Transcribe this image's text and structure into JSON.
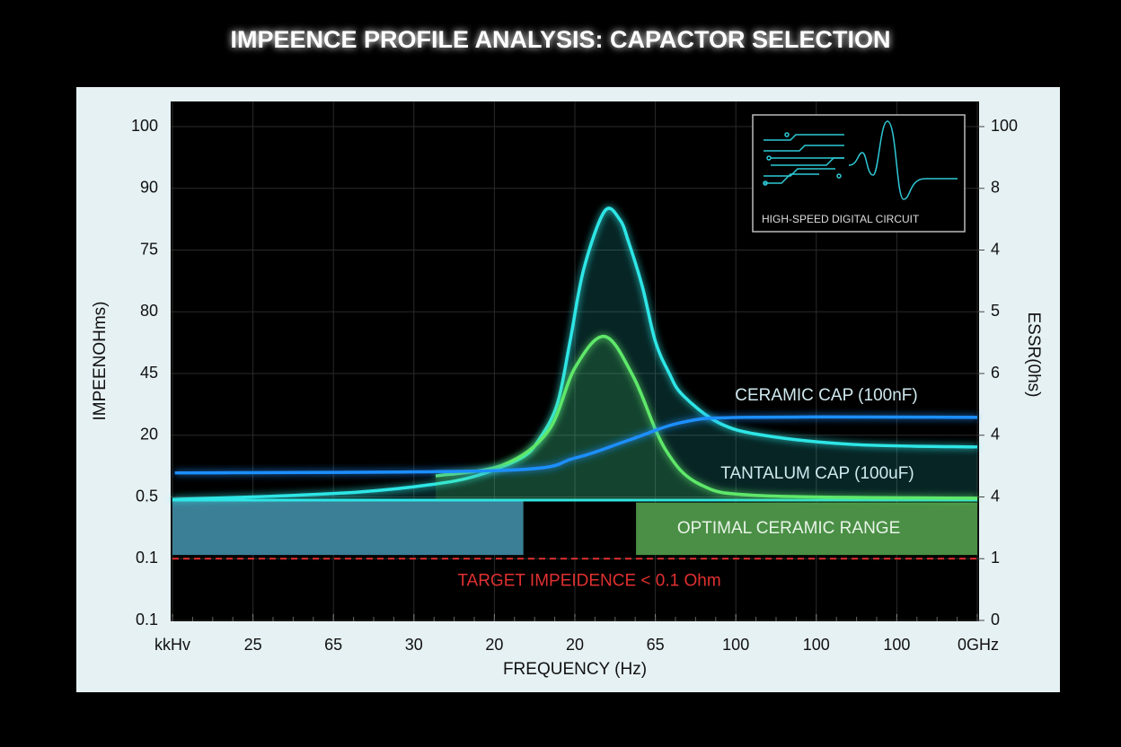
{
  "chart_data": {
    "type": "line",
    "title": "IMPEENCE PROFILE ANALYSIS: CAPACTOR SELECTION",
    "x_label": "FREQUENCY (Hz)",
    "y_label": "IMPEENOHms)",
    "y2_label": "ESSR(0hs)",
    "xlim": [
      0,
      10
    ],
    "xticks": [
      {
        "value": 0,
        "label": "kkHv"
      },
      {
        "value": 1,
        "label": "25"
      },
      {
        "value": 2,
        "label": "65"
      },
      {
        "value": 3,
        "label": "30"
      },
      {
        "value": 4,
        "label": "20"
      },
      {
        "value": 5,
        "label": "20"
      },
      {
        "value": 6,
        "label": "65"
      },
      {
        "value": 7,
        "label": "100"
      },
      {
        "value": 8,
        "label": "100"
      },
      {
        "value": 9,
        "label": "100"
      },
      {
        "value": 10,
        "label": "0GHz"
      }
    ],
    "ylim": [
      0,
      8
    ],
    "yticks": [
      {
        "value": 0,
        "label": "0.1"
      },
      {
        "value": 1,
        "label": "0.1"
      },
      {
        "value": 2,
        "label": "0.5"
      },
      {
        "value": 3,
        "label": "20"
      },
      {
        "value": 4,
        "label": "45"
      },
      {
        "value": 5,
        "label": "80"
      },
      {
        "value": 6,
        "label": "75"
      },
      {
        "value": 7,
        "label": "90"
      },
      {
        "value": 8,
        "label": "100"
      }
    ],
    "y2lim": [
      0,
      8
    ],
    "y2ticks": [
      {
        "value": 0,
        "label": "0"
      },
      {
        "value": 1,
        "label": "1"
      },
      {
        "value": 2,
        "label": "4"
      },
      {
        "value": 3,
        "label": "4"
      },
      {
        "value": 4,
        "label": "6"
      },
      {
        "value": 5,
        "label": "5"
      },
      {
        "value": 6,
        "label": "4"
      },
      {
        "value": 7,
        "label": "8"
      },
      {
        "value": 8,
        "label": "100"
      }
    ],
    "grid": true,
    "series": [
      {
        "name": "TANTALUM CAP (100uF)",
        "color": "#2ee6e6",
        "x": [
          0,
          1.21,
          2.32,
          3.21,
          3.77,
          4.33,
          4.55,
          4.78,
          4.94,
          5.11,
          5.37,
          5.56,
          5.67,
          5.84,
          6.0,
          6.17,
          6.34,
          6.79,
          7.34,
          8.46,
          10
        ],
        "values": [
          1.96,
          2.01,
          2.08,
          2.2,
          2.34,
          2.63,
          2.92,
          3.5,
          4.52,
          5.69,
          6.63,
          6.49,
          6.12,
          5.4,
          4.52,
          4.01,
          3.65,
          3.2,
          3.0,
          2.85,
          2.81
        ]
      },
      {
        "color": "#5ee86a",
        "x": [
          3.27,
          4.11,
          4.67,
          5.0,
          5.37,
          5.73,
          6.12,
          6.56,
          7.34,
          10
        ],
        "values": [
          2.34,
          2.52,
          3.07,
          4.09,
          4.6,
          3.94,
          2.78,
          2.2,
          2.02,
          1.98
        ]
      },
      {
        "name": "CERAMIC CAP (100nF)",
        "color": "#1e8fff",
        "x": [
          0.03,
          4.11,
          5.0,
          5.67,
          6.34,
          7.12,
          10
        ],
        "values": [
          2.39,
          2.43,
          2.63,
          2.92,
          3.21,
          3.29,
          3.29
        ]
      }
    ],
    "bands": [
      {
        "x": [
          0,
          4.36
        ],
        "y": [
          1.06,
          1.93
        ],
        "color": "#3a7f96"
      },
      {
        "x": [
          5.76,
          10
        ],
        "y": [
          1.06,
          1.91
        ],
        "color": "#4a8f45",
        "label": "OPTIMAL CERAMIC RANGE"
      }
    ],
    "target": {
      "value": 1.0,
      "label": "TARGET IMPEIDENCE < 0.1 Ohm",
      "color": "#e03030"
    },
    "inset_label": "HIGH-SPEED DIGITAL CIRCUIT"
  }
}
